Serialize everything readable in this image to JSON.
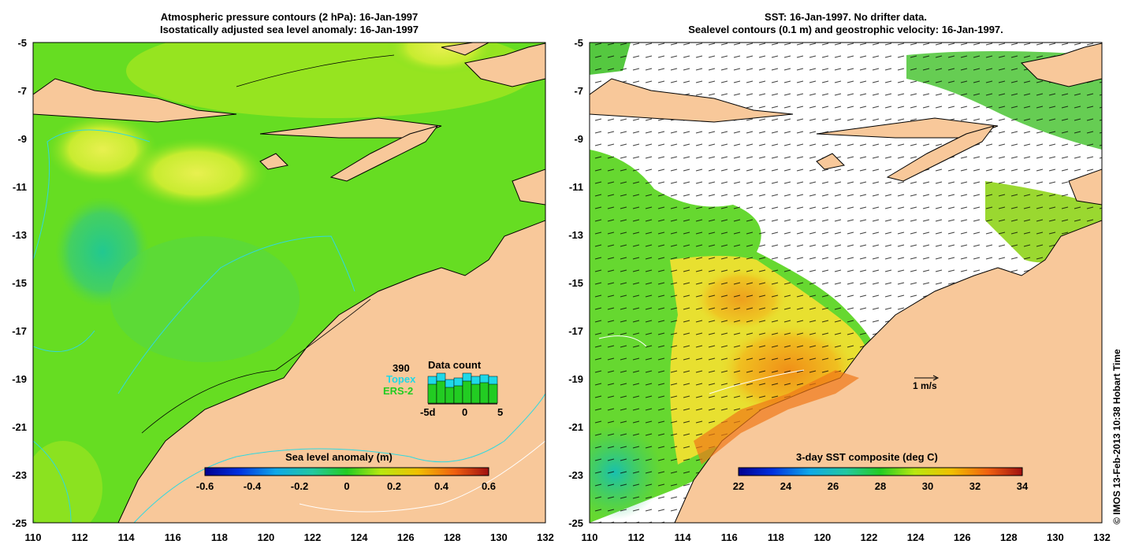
{
  "left_panel": {
    "title_line1": "Atmospheric pressure contours (2 hPa): 16-Jan-1997",
    "title_line2": "Isostatically adjusted sea level anomaly: 16-Jan-1997",
    "colorbar_title": "Sea level anomaly (m)",
    "colorbar_ticks": [
      "-0.6",
      "-0.4",
      "-0.2",
      "0",
      "0.2",
      "0.4",
      "0.6"
    ],
    "data_count": {
      "title": "Data count",
      "total": "390",
      "topex_label": "Topex",
      "ers2_label": "ERS-2",
      "axis_ticks": [
        "-5d",
        "0",
        "5"
      ],
      "topex_color": "#1fd8e8",
      "ers2_color": "#22cc22"
    }
  },
  "right_panel": {
    "title_line1": "SST: 16-Jan-1997. No drifter data.",
    "title_line2": "Sealevel contours (0.1 m) and geostrophic velocity: 16-Jan-1997.",
    "colorbar_title": "3-day SST composite (deg C)",
    "colorbar_ticks": [
      "22",
      "24",
      "26",
      "28",
      "30",
      "32",
      "34"
    ],
    "velocity_scale_label": "1 m/s"
  },
  "axes": {
    "lat_ticks": [
      "-5",
      "-7",
      "-9",
      "-11",
      "-13",
      "-15",
      "-17",
      "-19",
      "-21",
      "-23",
      "-25"
    ],
    "lon_ticks": [
      "110",
      "112",
      "114",
      "116",
      "118",
      "120",
      "122",
      "124",
      "126",
      "128",
      "130",
      "132"
    ]
  },
  "credit": "© IMOS 13-Feb-2013 10:38 Hobart Time",
  "colors": {
    "land": "#f8c89a",
    "sla_mid": "#66dd22",
    "sst_warm": "#f0a020"
  }
}
